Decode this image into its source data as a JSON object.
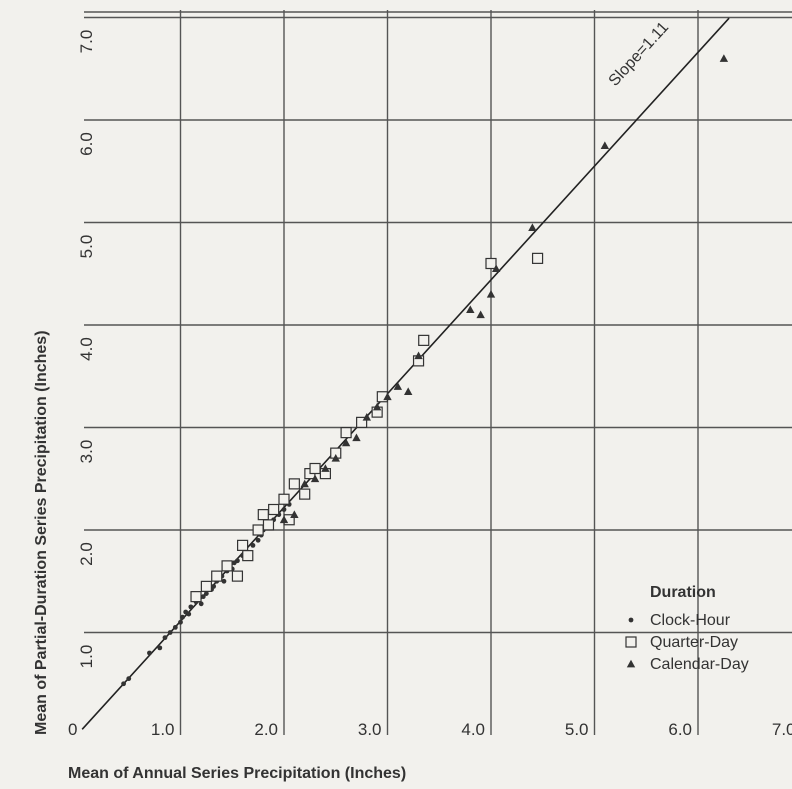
{
  "chart_data": {
    "type": "scatter",
    "xlabel": "Mean of Annual Series Precipitation (Inches)",
    "ylabel": "Mean of Partial-Duration Series Precipitation (Inches)",
    "xlim": [
      0,
      7
    ],
    "ylim": [
      0,
      7
    ],
    "x_ticks": [
      "0",
      "1.0",
      "2.0",
      "3.0",
      "4.0",
      "5.0",
      "6.0",
      "7.0"
    ],
    "y_ticks": [
      "1.0",
      "2.0",
      "3.0",
      "4.0",
      "5.0",
      "6.0",
      "7.0"
    ],
    "grid": true,
    "legend": {
      "title": "Duration",
      "position": "bottom-right"
    },
    "fit_line": {
      "slope": 1.11,
      "intercept": 0,
      "label": "Slope=1.11"
    },
    "series": [
      {
        "name": "Clock-Hour",
        "marker": "dot",
        "points": [
          [
            0.45,
            0.5
          ],
          [
            0.5,
            0.55
          ],
          [
            0.7,
            0.8
          ],
          [
            0.8,
            0.85
          ],
          [
            0.85,
            0.95
          ],
          [
            0.9,
            1.0
          ],
          [
            0.95,
            1.05
          ],
          [
            1.0,
            1.1
          ],
          [
            1.02,
            1.15
          ],
          [
            1.05,
            1.2
          ],
          [
            1.08,
            1.18
          ],
          [
            1.1,
            1.25
          ],
          [
            1.15,
            1.3
          ],
          [
            1.2,
            1.28
          ],
          [
            1.22,
            1.35
          ],
          [
            1.25,
            1.38
          ],
          [
            1.3,
            1.42
          ],
          [
            1.32,
            1.45
          ],
          [
            1.35,
            1.5
          ],
          [
            1.38,
            1.52
          ],
          [
            1.4,
            1.55
          ],
          [
            1.42,
            1.5
          ],
          [
            1.45,
            1.6
          ],
          [
            1.5,
            1.62
          ],
          [
            1.52,
            1.68
          ],
          [
            1.55,
            1.7
          ],
          [
            1.6,
            1.75
          ],
          [
            1.62,
            1.8
          ],
          [
            1.65,
            1.78
          ],
          [
            1.7,
            1.85
          ],
          [
            1.75,
            1.9
          ],
          [
            1.78,
            1.95
          ],
          [
            1.8,
            2.0
          ],
          [
            1.85,
            2.05
          ],
          [
            1.9,
            2.1
          ],
          [
            1.95,
            2.15
          ],
          [
            2.0,
            2.2
          ],
          [
            2.05,
            2.25
          ]
        ]
      },
      {
        "name": "Quarter-Day",
        "marker": "square",
        "points": [
          [
            1.15,
            1.35
          ],
          [
            1.25,
            1.45
          ],
          [
            1.35,
            1.55
          ],
          [
            1.45,
            1.65
          ],
          [
            1.55,
            1.55
          ],
          [
            1.6,
            1.85
          ],
          [
            1.65,
            1.75
          ],
          [
            1.75,
            2.0
          ],
          [
            1.8,
            2.15
          ],
          [
            1.85,
            2.05
          ],
          [
            1.9,
            2.2
          ],
          [
            2.0,
            2.3
          ],
          [
            2.05,
            2.1
          ],
          [
            2.1,
            2.45
          ],
          [
            2.2,
            2.35
          ],
          [
            2.25,
            2.55
          ],
          [
            2.3,
            2.6
          ],
          [
            2.4,
            2.55
          ],
          [
            2.5,
            2.75
          ],
          [
            2.6,
            2.95
          ],
          [
            2.75,
            3.05
          ],
          [
            2.9,
            3.15
          ],
          [
            2.95,
            3.3
          ],
          [
            3.3,
            3.65
          ],
          [
            3.35,
            3.85
          ],
          [
            4.0,
            4.6
          ],
          [
            4.45,
            4.65
          ]
        ]
      },
      {
        "name": "Calendar-Day",
        "marker": "triangle",
        "points": [
          [
            2.0,
            2.1
          ],
          [
            2.1,
            2.15
          ],
          [
            2.2,
            2.45
          ],
          [
            2.3,
            2.5
          ],
          [
            2.4,
            2.6
          ],
          [
            2.5,
            2.7
          ],
          [
            2.6,
            2.85
          ],
          [
            2.7,
            2.9
          ],
          [
            2.8,
            3.1
          ],
          [
            2.9,
            3.2
          ],
          [
            3.0,
            3.3
          ],
          [
            3.1,
            3.4
          ],
          [
            3.2,
            3.35
          ],
          [
            3.3,
            3.7
          ],
          [
            3.8,
            4.15
          ],
          [
            3.9,
            4.1
          ],
          [
            4.0,
            4.3
          ],
          [
            4.05,
            4.55
          ],
          [
            4.4,
            4.95
          ],
          [
            5.1,
            5.75
          ],
          [
            6.25,
            6.6
          ]
        ]
      }
    ]
  }
}
